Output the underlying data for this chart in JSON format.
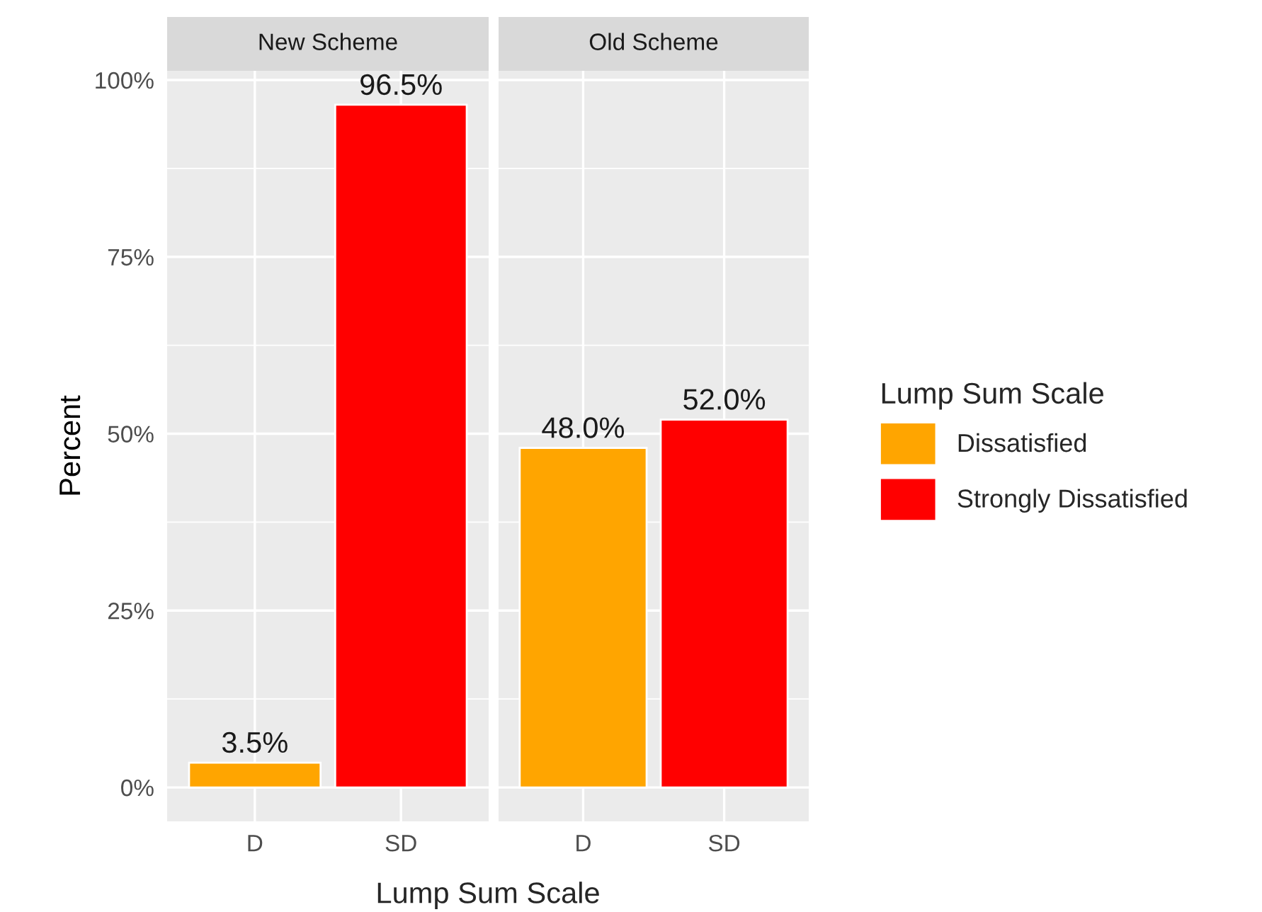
{
  "chart_data": [
    {
      "type": "bar",
      "title": "New Scheme",
      "categories": [
        "D",
        "SD"
      ],
      "series": [
        {
          "name": "Dissatisfied",
          "color": "#ffa500",
          "values": [
            3.5,
            null
          ],
          "value_labels": [
            "3.5%",
            null
          ]
        },
        {
          "name": "Strongly Dissatisfied",
          "color": "#ff0000",
          "values": [
            null,
            96.5
          ],
          "value_labels": [
            null,
            "96.5%"
          ]
        }
      ],
      "ylim": [
        -4.8,
        101.3
      ],
      "yticks": [
        {
          "value": 0,
          "label": "0%"
        },
        {
          "value": 25,
          "label": "25%"
        },
        {
          "value": 50,
          "label": "50%"
        },
        {
          "value": 75,
          "label": "75%"
        },
        {
          "value": 100,
          "label": "100%"
        }
      ],
      "xlabel": "Lump Sum Scale",
      "ylabel": "Percent",
      "grid": true,
      "legend": "right",
      "legend_title": "Lump Sum Scale"
    },
    {
      "type": "bar",
      "title": "Old Scheme",
      "categories": [
        "D",
        "SD"
      ],
      "series": [
        {
          "color": "#ffa500",
          "values": [
            48.0,
            null
          ],
          "value_labels": [
            "48.0%",
            null
          ]
        },
        {
          "color": "#ff0000",
          "values": [
            null,
            52.0
          ],
          "value_labels": [
            null,
            "52.0%"
          ]
        }
      ],
      "ylim": [
        -4.8,
        101.3
      ],
      "yticks": [
        {
          "value": 0,
          "label": null
        },
        {
          "value": 25,
          "label": null
        },
        {
          "value": 50,
          "label": null
        },
        {
          "value": 75,
          "label": null
        },
        {
          "value": 100,
          "label": null
        }
      ],
      "tick_labels": "x",
      "grid": true
    }
  ]
}
